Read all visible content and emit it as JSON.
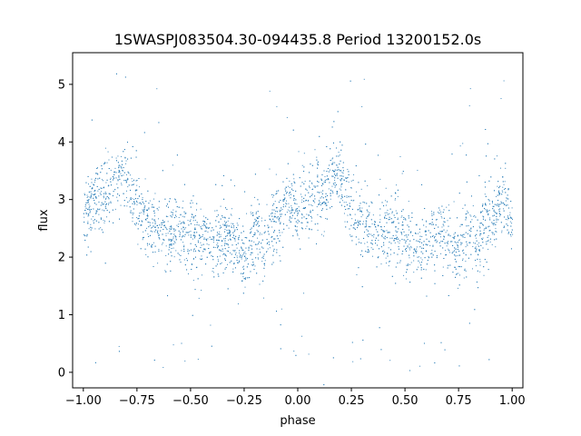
{
  "chart_data": {
    "type": "scatter",
    "title": "1SWASPJ083504.30-094435.8 Period 13200152.0s",
    "xlabel": "phase",
    "ylabel": "flux",
    "xlim": [
      -1.05,
      1.05
    ],
    "ylim": [
      -0.27,
      5.55
    ],
    "xticks": [
      -1.0,
      -0.75,
      -0.5,
      -0.25,
      0.0,
      0.25,
      0.5,
      0.75,
      1.0
    ],
    "xtick_labels": [
      "−1.00",
      "−0.75",
      "−0.50",
      "−0.25",
      "0.00",
      "0.25",
      "0.50",
      "0.75",
      "1.00"
    ],
    "yticks": [
      0,
      1,
      2,
      3,
      4,
      5
    ],
    "ytick_labels": [
      "0",
      "1",
      "2",
      "3",
      "4",
      "5"
    ],
    "grid": false,
    "legend": "none",
    "series": [
      {
        "color": "#1f77b4",
        "profile": {
          "phase": [
            0.0,
            0.03,
            0.06,
            0.09,
            0.12,
            0.15,
            0.18,
            0.21,
            0.24,
            0.27,
            0.3,
            0.33,
            0.36,
            0.39,
            0.42,
            0.45,
            0.48,
            0.51,
            0.54,
            0.57,
            0.6,
            0.63,
            0.66,
            0.69,
            0.72,
            0.75,
            0.78,
            0.81,
            0.84,
            0.87,
            0.9,
            0.93,
            0.96,
            0.99,
            1.0
          ],
          "flux": [
            2.75,
            2.9,
            3.0,
            3.05,
            3.15,
            3.3,
            3.5,
            3.3,
            2.9,
            2.7,
            2.6,
            2.5,
            2.45,
            2.4,
            2.5,
            2.45,
            2.4,
            2.35,
            2.3,
            2.3,
            2.25,
            2.3,
            2.35,
            2.4,
            2.1,
            2.0,
            2.3,
            2.5,
            2.0,
            2.6,
            2.65,
            2.9,
            3.0,
            2.8,
            2.75
          ]
        }
      }
    ]
  }
}
